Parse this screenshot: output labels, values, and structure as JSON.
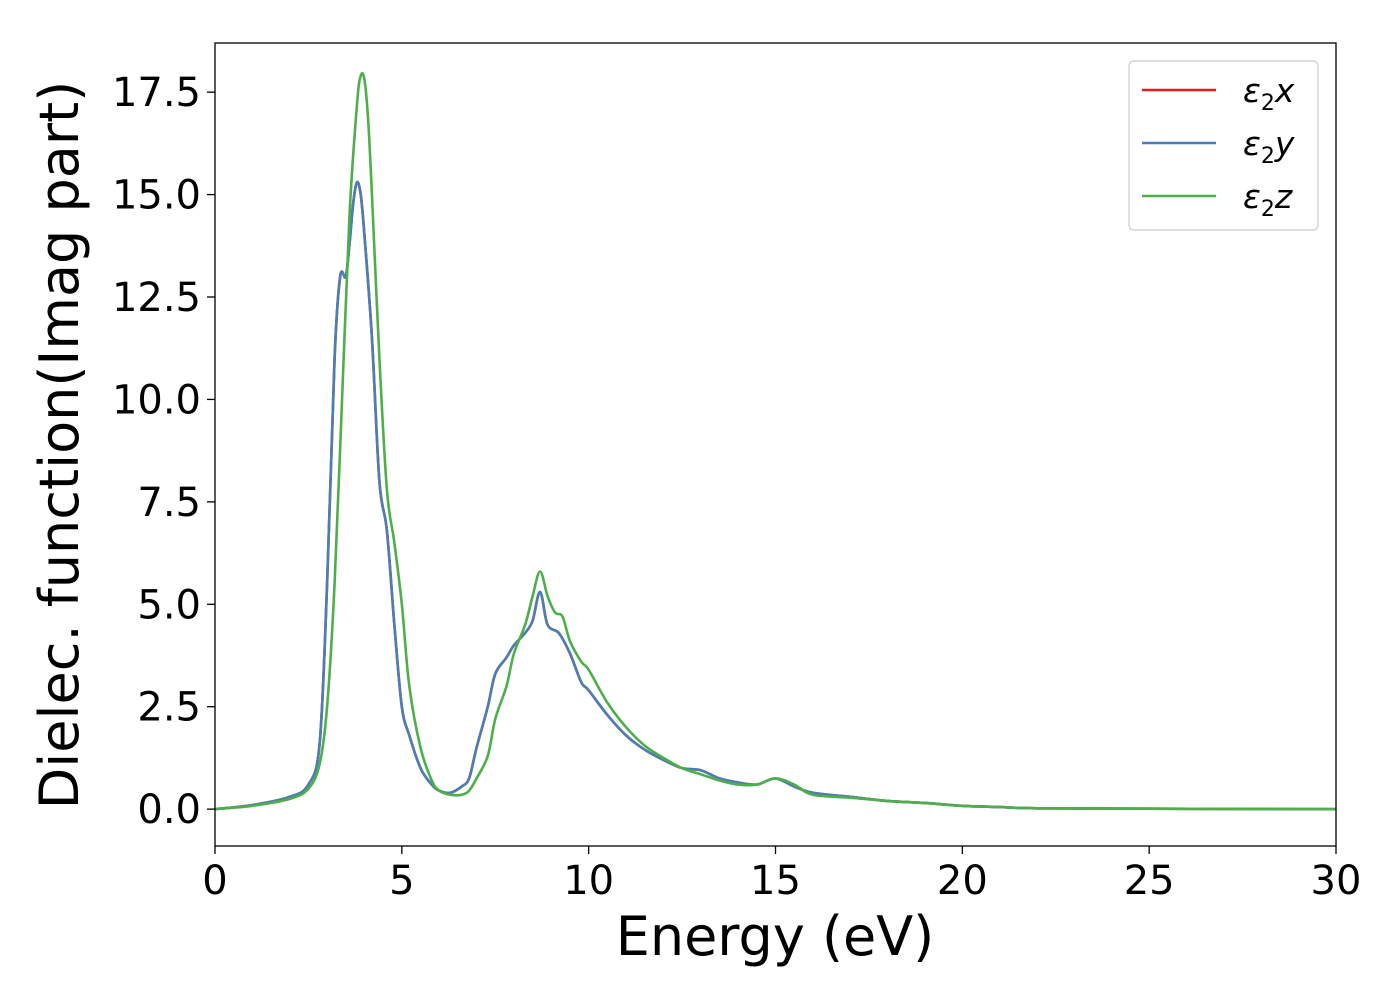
{
  "chart_data": {
    "type": "line",
    "xlabel": "Energy (eV)",
    "ylabel": "Dielec. function(Imag part)",
    "xlim": [
      0,
      30
    ],
    "ylim": [
      -0.9,
      18.7
    ],
    "xticks": [
      0,
      5,
      10,
      15,
      20,
      25,
      30
    ],
    "xtick_labels": [
      "0",
      "5",
      "10",
      "15",
      "20",
      "25",
      "30"
    ],
    "yticks": [
      0.0,
      2.5,
      5.0,
      7.5,
      10.0,
      12.5,
      15.0,
      17.5
    ],
    "ytick_labels": [
      "0.0",
      "2.5",
      "5.0",
      "7.5",
      "10.0",
      "12.5",
      "15.0",
      "17.5"
    ],
    "grid": false,
    "legend_position": "top-right",
    "series": [
      {
        "name": "ε2x",
        "label_main": "ε",
        "label_sub": "2",
        "label_var": "x",
        "color": "#e41a1c",
        "x": [
          0,
          1,
          2,
          2.5,
          2.8,
          3.0,
          3.2,
          3.35,
          3.5,
          3.6,
          3.7,
          3.8,
          3.9,
          4.0,
          4.2,
          4.4,
          4.6,
          4.8,
          5.0,
          5.2,
          5.5,
          5.8,
          6.0,
          6.3,
          6.6,
          6.8,
          7.0,
          7.3,
          7.5,
          7.8,
          8.0,
          8.3,
          8.5,
          8.7,
          8.9,
          9.2,
          9.5,
          9.8,
          10.0,
          10.5,
          11.0,
          11.5,
          12.0,
          12.5,
          13.0,
          13.5,
          14.0,
          14.5,
          15.0,
          15.5,
          16.0,
          17.0,
          18.0,
          19.0,
          20.0,
          21.0,
          22.0,
          25.0,
          30.0
        ],
        "y": [
          0.0,
          0.1,
          0.3,
          0.6,
          1.6,
          5.5,
          11.0,
          13.0,
          13.0,
          13.8,
          14.8,
          15.3,
          15.0,
          14.0,
          11.5,
          8.0,
          6.8,
          4.5,
          2.5,
          1.8,
          1.0,
          0.6,
          0.45,
          0.4,
          0.55,
          0.75,
          1.5,
          2.5,
          3.3,
          3.7,
          4.0,
          4.3,
          4.6,
          5.3,
          4.5,
          4.3,
          3.8,
          3.1,
          2.9,
          2.3,
          1.8,
          1.45,
          1.2,
          1.0,
          0.95,
          0.75,
          0.65,
          0.6,
          0.75,
          0.55,
          0.4,
          0.3,
          0.2,
          0.15,
          0.08,
          0.05,
          0.02,
          0.01,
          0.0
        ]
      },
      {
        "name": "ε2y",
        "label_main": "ε",
        "label_sub": "2",
        "label_var": "y",
        "color": "#4a7fb5",
        "x": [
          0,
          1,
          2,
          2.5,
          2.8,
          3.0,
          3.2,
          3.35,
          3.5,
          3.6,
          3.7,
          3.8,
          3.9,
          4.0,
          4.2,
          4.4,
          4.6,
          4.8,
          5.0,
          5.2,
          5.5,
          5.8,
          6.0,
          6.3,
          6.6,
          6.8,
          7.0,
          7.3,
          7.5,
          7.8,
          8.0,
          8.3,
          8.5,
          8.7,
          8.9,
          9.2,
          9.5,
          9.8,
          10.0,
          10.5,
          11.0,
          11.5,
          12.0,
          12.5,
          13.0,
          13.5,
          14.0,
          14.5,
          15.0,
          15.5,
          16.0,
          17.0,
          18.0,
          19.0,
          20.0,
          21.0,
          22.0,
          25.0,
          30.0
        ],
        "y": [
          0.0,
          0.1,
          0.3,
          0.6,
          1.6,
          5.5,
          11.0,
          13.0,
          13.0,
          13.8,
          14.8,
          15.3,
          15.0,
          14.0,
          11.5,
          8.0,
          6.8,
          4.5,
          2.5,
          1.8,
          1.0,
          0.6,
          0.45,
          0.4,
          0.55,
          0.75,
          1.5,
          2.5,
          3.3,
          3.7,
          4.0,
          4.3,
          4.6,
          5.3,
          4.5,
          4.3,
          3.8,
          3.1,
          2.9,
          2.3,
          1.8,
          1.45,
          1.2,
          1.0,
          0.95,
          0.75,
          0.65,
          0.6,
          0.75,
          0.55,
          0.4,
          0.3,
          0.2,
          0.15,
          0.08,
          0.05,
          0.02,
          0.01,
          0.0
        ]
      },
      {
        "name": "ε2z",
        "label_main": "ε",
        "label_sub": "2",
        "label_var": "z",
        "color": "#4daf4a",
        "x": [
          0,
          1,
          2,
          2.5,
          2.8,
          3.0,
          3.2,
          3.4,
          3.6,
          3.8,
          3.9,
          4.0,
          4.1,
          4.2,
          4.4,
          4.6,
          4.8,
          5.0,
          5.2,
          5.5,
          5.8,
          6.0,
          6.3,
          6.6,
          6.8,
          7.0,
          7.3,
          7.5,
          7.8,
          8.0,
          8.3,
          8.5,
          8.7,
          8.9,
          9.1,
          9.3,
          9.5,
          9.8,
          10.0,
          10.5,
          11.0,
          11.5,
          12.0,
          12.5,
          13.0,
          13.5,
          14.0,
          14.5,
          15.0,
          15.5,
          16.0,
          17.0,
          18.0,
          19.0,
          20.0,
          21.0,
          22.0,
          25.0,
          30.0
        ],
        "y": [
          0.0,
          0.08,
          0.25,
          0.5,
          1.1,
          2.5,
          5.5,
          10.0,
          14.5,
          17.2,
          17.9,
          17.8,
          16.8,
          15.0,
          11.0,
          7.8,
          6.5,
          5.0,
          3.0,
          1.5,
          0.7,
          0.45,
          0.35,
          0.35,
          0.45,
          0.75,
          1.3,
          2.2,
          3.0,
          3.8,
          4.5,
          5.2,
          5.8,
          5.2,
          4.8,
          4.7,
          4.1,
          3.6,
          3.4,
          2.6,
          2.0,
          1.55,
          1.25,
          1.0,
          0.85,
          0.7,
          0.6,
          0.6,
          0.75,
          0.6,
          0.35,
          0.28,
          0.2,
          0.15,
          0.08,
          0.05,
          0.02,
          0.01,
          0.0
        ]
      }
    ]
  }
}
